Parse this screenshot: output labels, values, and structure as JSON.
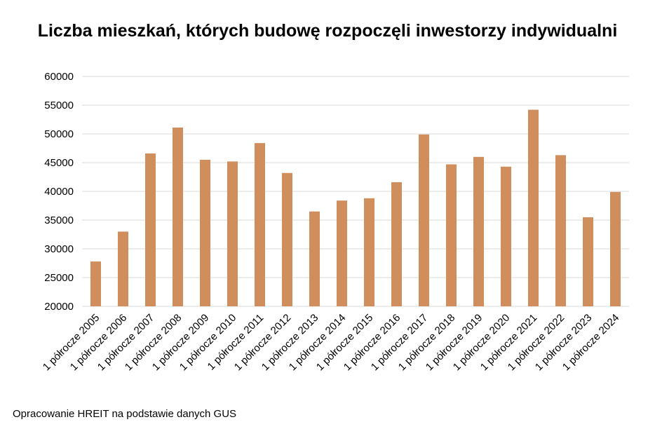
{
  "title": "Liczba mieszkań, których budowę rozpoczęli inwestorzy indywidualni",
  "source_note": "Opracowanie HREIT na podstawie danych GUS",
  "colors": {
    "bar": "#d08e5d",
    "grid": "#d9d9d9"
  },
  "chart_data": {
    "type": "bar",
    "title": "Liczba mieszkań, których budowę rozpoczęli inwestorzy indywidualni",
    "xlabel": "",
    "ylabel": "",
    "ylim": [
      20000,
      60000
    ],
    "yticks": [
      "20000",
      "25000",
      "30000",
      "35000",
      "40000",
      "45000",
      "50000",
      "55000",
      "60000"
    ],
    "grid": true,
    "legend": "none",
    "categories": [
      "1 półrocze 2005",
      "1 półrocze 2006",
      "1 półrocze 2007",
      "1 półrocze 2008",
      "1 półrocze 2009",
      "1 półrocze 2010",
      "1 półrocze 2011",
      "1 półrocze 2012",
      "1 półrocze 2013",
      "1 półrocze 2014",
      "1 półrocze 2015",
      "1 półrocze 2016",
      "1 półrocze 2017",
      "1 półrocze 2018",
      "1 półrocze 2019",
      "1 półrocze 2020",
      "1 półrocze 2021",
      "1 półrocze 2022",
      "1 półrocze 2023",
      "1 półrocze 2024"
    ],
    "values": [
      27800,
      33000,
      46600,
      51100,
      45500,
      45200,
      48400,
      43200,
      36500,
      38400,
      38800,
      41600,
      49900,
      44700,
      46000,
      44300,
      54200,
      46300,
      35500,
      39900
    ]
  }
}
